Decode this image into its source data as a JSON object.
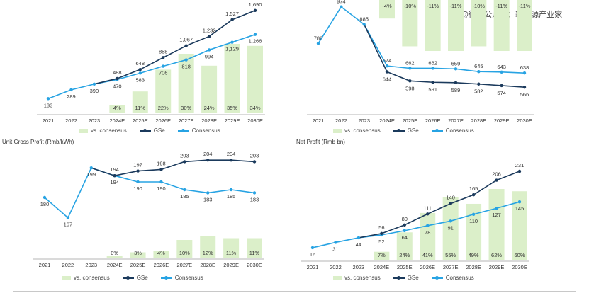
{
  "watermark": "@微信公众号：新能源产业家",
  "colors": {
    "gse": "#1b3a5c",
    "consensus": "#27a3e3",
    "bar": "#dbefc9",
    "axis": "#b5b5b5"
  },
  "legend": {
    "bars": "vs. consensus",
    "gse": "GSe",
    "consensus": "Consensus"
  },
  "chart_data": [
    {
      "type": "line",
      "title": "",
      "categories": [
        "2021",
        "2022",
        "2023",
        "2024E",
        "2025E",
        "2026E",
        "2027E",
        "2028E",
        "2029E",
        "2030E"
      ],
      "series": [
        {
          "name": "GSe",
          "values": [
            null,
            null,
            null,
            488,
            648,
            858,
            1067,
            1232,
            1527,
            1690
          ]
        },
        {
          "name": "Consensus",
          "values": [
            133,
            289,
            390,
            470,
            583,
            706,
            818,
            994,
            1129,
            1266
          ]
        }
      ],
      "shared_points": [
        0,
        1,
        2
      ],
      "bars": {
        "name": "vs. consensus",
        "values": [
          null,
          null,
          null,
          4,
          11,
          22,
          30,
          24,
          35,
          34
        ],
        "labels": [
          "",
          "",
          "",
          "4%",
          "11%",
          "22%",
          "30%",
          "24%",
          "35%",
          "34%"
        ]
      },
      "value_labels": {
        "gse": [
          "",
          "",
          "",
          "488",
          "648",
          "858",
          "1,067",
          "1,232",
          "1,527",
          "1,690"
        ],
        "consensus": [
          "133",
          "289",
          "390",
          "470",
          "583",
          "706",
          "818",
          "994",
          "1,129",
          "1,266"
        ]
      },
      "ylim": [
        0,
        1750
      ]
    },
    {
      "type": "line",
      "title": "",
      "categories": [
        "2021",
        "2022",
        "2023",
        "2024E",
        "2025E",
        "2026E",
        "2027E",
        "2028E",
        "2029E",
        "2030E"
      ],
      "series": [
        {
          "name": "GSe",
          "values": [
            null,
            null,
            null,
            644,
            598,
            591,
            589,
            582,
            574,
            566
          ]
        },
        {
          "name": "Consensus",
          "values": [
            788,
            974,
            885,
            674,
            662,
            662,
            659,
            645,
            643,
            638
          ]
        }
      ],
      "shared_points": [
        0,
        1,
        2
      ],
      "bars": {
        "name": "vs. consensus",
        "values": [
          null,
          null,
          null,
          -4,
          -10,
          -11,
          -11,
          -10,
          -11,
          -11
        ],
        "labels": [
          "",
          "",
          "",
          "-4%",
          "-10%",
          "-11%",
          "-11%",
          "-10%",
          "-11%",
          "-11%"
        ]
      },
      "value_labels": {
        "gse": [
          "",
          "",
          "",
          "644",
          "598",
          "591",
          "589",
          "582",
          "574",
          "566"
        ],
        "consensus": [
          "788",
          "974",
          "885",
          "674",
          "662",
          "662",
          "659",
          "645",
          "643",
          "638"
        ]
      },
      "ylim": [
        520,
        980
      ]
    },
    {
      "type": "line",
      "title": "Unit Gross Profit (Rmb/kWh)",
      "categories": [
        "2021",
        "2022",
        "2023",
        "2024E",
        "2025E",
        "2026E",
        "2027E",
        "2028E",
        "2029E",
        "2030E"
      ],
      "series": [
        {
          "name": "GSe",
          "values": [
            null,
            null,
            null,
            194,
            197,
            198,
            203,
            204,
            204,
            203
          ]
        },
        {
          "name": "Consensus",
          "values": [
            180,
            167,
            199,
            194,
            190,
            190,
            185,
            183,
            185,
            183
          ]
        }
      ],
      "shared_points": [
        0,
        1,
        2
      ],
      "bars": {
        "name": "vs. consensus",
        "values": [
          null,
          null,
          null,
          0,
          3,
          4,
          10,
          12,
          11,
          11
        ],
        "labels": [
          "",
          "",
          "",
          "0%",
          "3%",
          "4%",
          "10%",
          "12%",
          "11%",
          "11%"
        ]
      },
      "value_labels": {
        "gse": [
          "",
          "",
          "",
          "194",
          "197",
          "198",
          "203",
          "204",
          "204",
          "203"
        ],
        "consensus": [
          "180",
          "167",
          "199",
          "194",
          "190",
          "190",
          "185",
          "183",
          "185",
          "183"
        ]
      },
      "ylim": [
        160,
        205
      ]
    },
    {
      "type": "line",
      "title": "Net Profit (Rmb bn)",
      "categories": [
        "2021",
        "2022",
        "2023",
        "2024E",
        "2025E",
        "2026E",
        "2027E",
        "2028E",
        "2029E",
        "2030E"
      ],
      "series": [
        {
          "name": "GSe",
          "values": [
            null,
            null,
            null,
            56,
            80,
            111,
            140,
            165,
            206,
            231
          ]
        },
        {
          "name": "Consensus",
          "values": [
            16,
            31,
            44,
            52,
            64,
            78,
            91,
            110,
            127,
            145
          ]
        }
      ],
      "shared_points": [
        0,
        1,
        2
      ],
      "bars": {
        "name": "vs. consensus",
        "values": [
          null,
          null,
          null,
          7,
          24,
          41,
          55,
          49,
          62,
          60
        ],
        "labels": [
          "",
          "",
          "",
          "7%",
          "24%",
          "41%",
          "55%",
          "49%",
          "62%",
          "60%"
        ]
      },
      "value_labels": {
        "gse": [
          "",
          "",
          "",
          "56",
          "80",
          "111",
          "140",
          "165",
          "206",
          "231"
        ],
        "consensus": [
          "16",
          "31",
          "44",
          "52",
          "64",
          "78",
          "91",
          "110",
          "127",
          "145"
        ]
      },
      "ylim": [
        0,
        235
      ]
    }
  ]
}
